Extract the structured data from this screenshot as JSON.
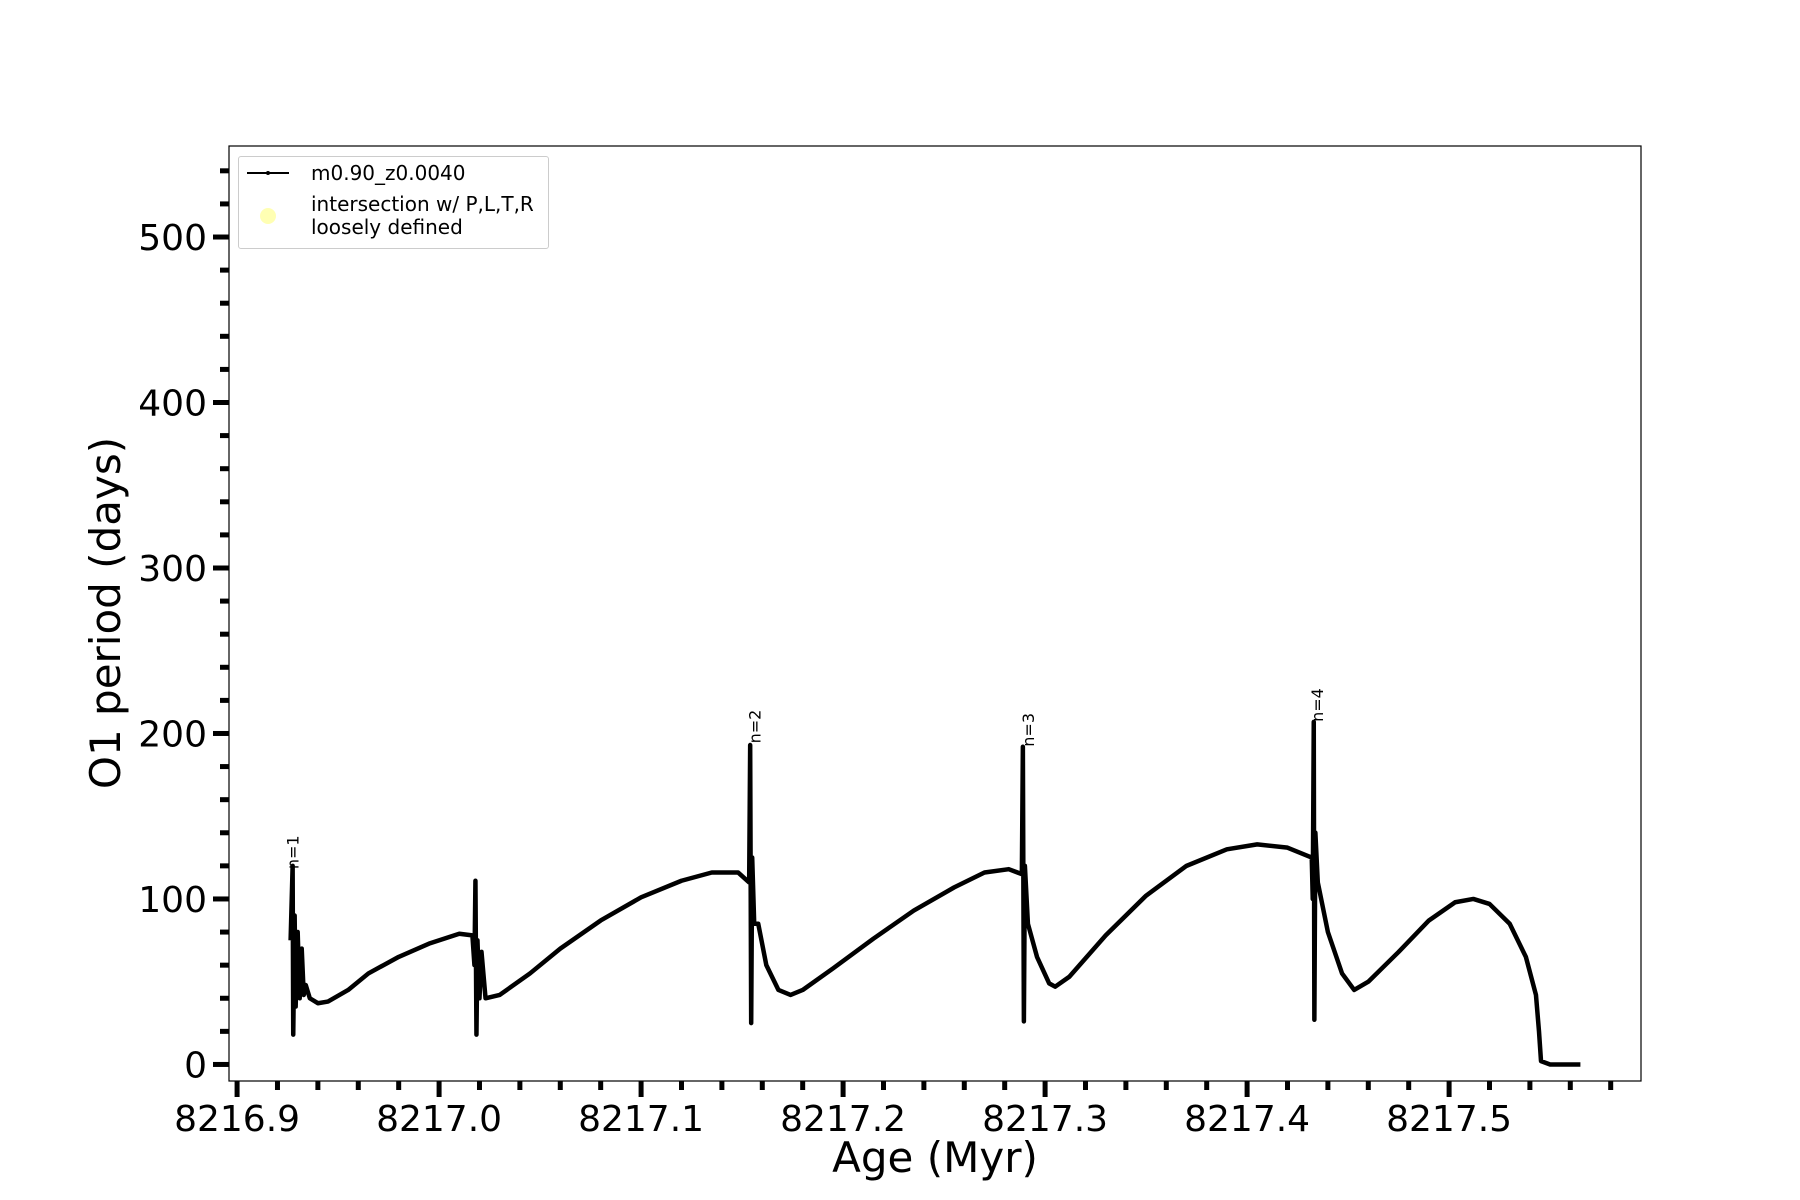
{
  "chart_data": {
    "type": "line",
    "xlabel": "Age (Myr)",
    "ylabel": "O1 period (days)",
    "xlim": [
      8216.896,
      8217.595
    ],
    "ylim": [
      -10,
      555
    ],
    "xticks": [
      8216.9,
      {
        "value": 8217,
        "label": "8217.0"
      },
      8217.1,
      8217.2,
      8217.3,
      8217.4,
      8217.5
    ],
    "yticks": [
      0,
      100,
      200,
      300,
      400,
      500
    ],
    "x_minor_ticks": [
      8216.92,
      8216.94,
      8216.96,
      8216.98,
      8217.02,
      8217.04,
      8217.06,
      8217.08,
      8217.12,
      8217.14,
      8217.16,
      8217.18,
      8217.22,
      8217.24,
      8217.26,
      8217.28,
      8217.32,
      8217.34,
      8217.36,
      8217.38,
      8217.42,
      8217.44,
      8217.46,
      8217.48,
      8217.52,
      8217.54,
      8217.56,
      8217.58
    ],
    "y_minor_ticks": [
      20,
      40,
      60,
      80,
      120,
      140,
      160,
      180,
      220,
      240,
      260,
      280,
      320,
      340,
      360,
      380,
      420,
      440,
      460,
      480,
      520,
      540
    ],
    "legend": "upper left",
    "series": [
      {
        "name": "m0.90_z0.0040",
        "color": "#000000",
        "x": [
          8216.9265,
          8216.9275,
          8216.9278,
          8216.9285,
          8216.929,
          8216.93,
          8216.931,
          8216.932,
          8216.933,
          8216.934,
          8216.936,
          8216.94,
          8216.945,
          8216.955,
          8216.965,
          8216.98,
          8216.995,
          8217.01,
          8217.0165,
          8217.0175,
          8217.018,
          8217.0185,
          8217.019,
          8217.02,
          8217.021,
          8217.023,
          8217.03,
          8217.045,
          8217.06,
          8217.08,
          8217.1,
          8217.12,
          8217.135,
          8217.148,
          8217.1535,
          8217.154,
          8217.1545,
          8217.155,
          8217.156,
          8217.158,
          8217.162,
          8217.168,
          8217.174,
          8217.18,
          8217.195,
          8217.215,
          8217.235,
          8217.255,
          8217.27,
          8217.282,
          8217.2885,
          8217.289,
          8217.2895,
          8217.29,
          8217.2915,
          8217.296,
          8217.302,
          8217.305,
          8217.312,
          8217.33,
          8217.35,
          8217.37,
          8217.39,
          8217.405,
          8217.42,
          8217.432,
          8217.4325,
          8217.433,
          8217.4333,
          8217.4338,
          8217.435,
          8217.44,
          8217.447,
          8217.453,
          8217.46,
          8217.475,
          8217.49,
          8217.503,
          8217.512,
          8217.52,
          8217.53,
          8217.538,
          8217.543,
          8217.5445,
          8217.5455,
          8217.55,
          8217.565
        ],
        "values": [
          75,
          120,
          18,
          90,
          35,
          80,
          40,
          70,
          42,
          48,
          40,
          37,
          38,
          45,
          55,
          65,
          73,
          79,
          78,
          60,
          111,
          18,
          75,
          40,
          68,
          40,
          42,
          55,
          70,
          87,
          101,
          111,
          116,
          116,
          110,
          193,
          25,
          125,
          85,
          85,
          60,
          45,
          42,
          45,
          58,
          76,
          93,
          107,
          116,
          118,
          115,
          192,
          26,
          120,
          85,
          65,
          49,
          47,
          53,
          78,
          102,
          120,
          130,
          133,
          131,
          125,
          100,
          207,
          27,
          140,
          110,
          80,
          55,
          45,
          50,
          68,
          87,
          98,
          100,
          97,
          85,
          65,
          42,
          20,
          2,
          0,
          0
        ]
      },
      {
        "name": "intersection w/ P,L,T,R\nloosely defined",
        "color": "#ffffb3",
        "type": "scatter",
        "x": [],
        "values": []
      }
    ],
    "annotations": [
      {
        "text": "n=1",
        "x": 8216.9305,
        "y": 118
      },
      {
        "text": "n=2",
        "x": 8217.159,
        "y": 194
      },
      {
        "text": "n=3",
        "x": 8217.2945,
        "y": 192
      },
      {
        "text": "n=4",
        "x": 8217.4375,
        "y": 207
      }
    ]
  }
}
